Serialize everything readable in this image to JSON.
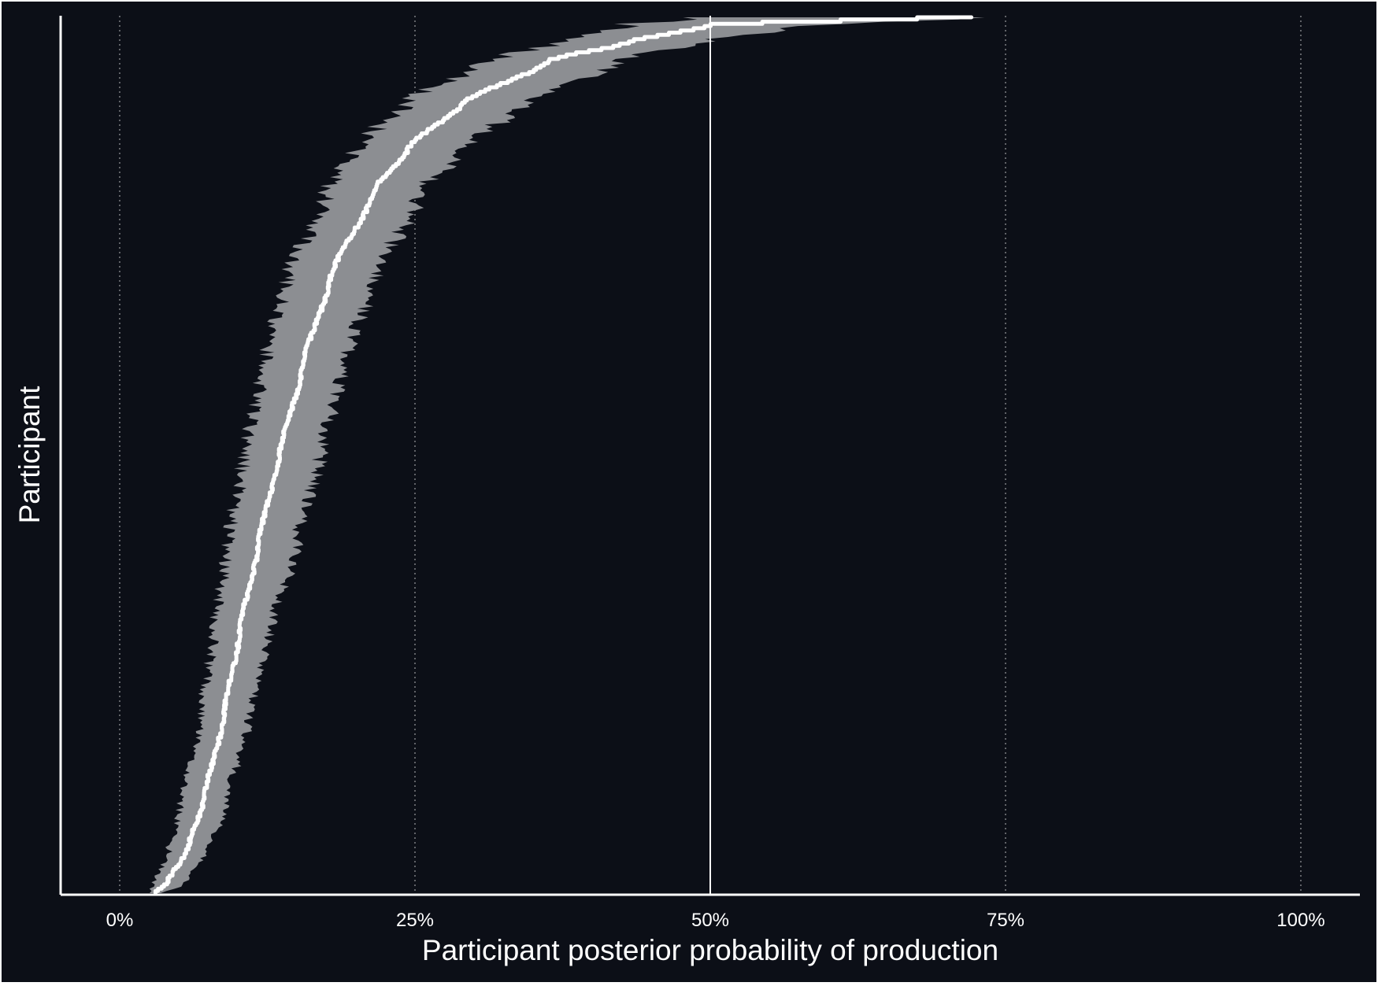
{
  "chart_data": {
    "type": "area",
    "title": "",
    "xlabel": "Participant posterior probability of production",
    "ylabel": "Participant",
    "xlim": [
      -0.05,
      1.05
    ],
    "x_ticks": [
      0,
      0.25,
      0.5,
      0.75,
      1.0
    ],
    "x_tick_labels": [
      "0%",
      "25%",
      "50%",
      "75%",
      "100%"
    ],
    "reference_line_x": 0.5,
    "grid": "dotted vertical at x ticks",
    "participant_count": 400,
    "series": [
      {
        "role": "credible-interval-band",
        "color": "#8c8e92",
        "quantile": [
          0.0,
          0.01,
          0.05,
          0.1,
          0.2,
          0.3,
          0.4,
          0.5,
          0.6,
          0.7,
          0.8,
          0.85,
          0.9,
          0.95,
          0.97,
          0.99,
          1.0
        ],
        "lower": [
          0.025,
          0.028,
          0.042,
          0.052,
          0.068,
          0.08,
          0.092,
          0.105,
          0.122,
          0.142,
          0.175,
          0.2,
          0.24,
          0.31,
          0.37,
          0.43,
          0.47
        ],
        "upper": [
          0.035,
          0.055,
          0.075,
          0.09,
          0.11,
          0.128,
          0.15,
          0.17,
          0.19,
          0.215,
          0.255,
          0.29,
          0.34,
          0.42,
          0.49,
          0.58,
          0.76
        ]
      },
      {
        "role": "posterior-mean",
        "color": "#ffffff",
        "quantile": [
          0.0,
          0.01,
          0.05,
          0.1,
          0.2,
          0.3,
          0.4,
          0.5,
          0.6,
          0.7,
          0.8,
          0.85,
          0.9,
          0.95,
          0.97,
          0.99,
          1.0
        ],
        "values": [
          0.03,
          0.04,
          0.058,
          0.07,
          0.088,
          0.102,
          0.118,
          0.135,
          0.155,
          0.178,
          0.215,
          0.245,
          0.29,
          0.365,
          0.43,
          0.5,
          0.72
        ]
      }
    ]
  }
}
